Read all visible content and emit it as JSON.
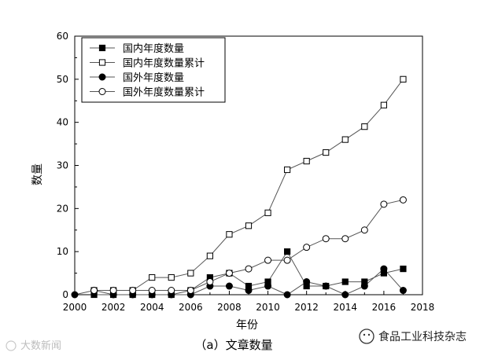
{
  "chart_data": {
    "type": "line",
    "xlabel": "年份",
    "ylabel": "数量",
    "caption": "（a）文章数量",
    "xlim": [
      2000,
      2018
    ],
    "ylim": [
      0,
      60
    ],
    "xticks": [
      2000,
      2002,
      2004,
      2006,
      2008,
      2010,
      2012,
      2014,
      2016,
      2018
    ],
    "yticks": [
      0,
      10,
      20,
      30,
      40,
      50,
      60
    ],
    "legend_position": "top-left",
    "series": [
      {
        "name": "国内年度数量",
        "marker": "filled-square",
        "x": [
          2001,
          2002,
          2003,
          2004,
          2005,
          2006,
          2007,
          2008,
          2009,
          2010,
          2011,
          2012,
          2013,
          2014,
          2015,
          2016,
          2017
        ],
        "y": [
          0,
          0,
          0,
          0,
          0,
          1,
          4,
          5,
          2,
          3,
          10,
          2,
          2,
          3,
          3,
          5,
          6
        ]
      },
      {
        "name": "国内年度数量累计",
        "marker": "open-square",
        "x": [
          2001,
          2002,
          2003,
          2004,
          2005,
          2006,
          2007,
          2008,
          2009,
          2010,
          2011,
          2012,
          2013,
          2014,
          2015,
          2016,
          2017
        ],
        "y": [
          1,
          1,
          1,
          4,
          4,
          5,
          9,
          14,
          16,
          19,
          29,
          31,
          33,
          36,
          39,
          44,
          50
        ]
      },
      {
        "name": "国外年度数量",
        "marker": "filled-circle",
        "x": [
          2000,
          2001,
          2002,
          2003,
          2004,
          2005,
          2006,
          2007,
          2008,
          2009,
          2010,
          2011,
          2012,
          2013,
          2014,
          2015,
          2016,
          2017
        ],
        "y": [
          0,
          1,
          0,
          0,
          0,
          0,
          0,
          2,
          2,
          1,
          2,
          0,
          3,
          2,
          0,
          2,
          6,
          1
        ]
      },
      {
        "name": "国外年度数量累计",
        "marker": "open-circle",
        "x": [
          2001,
          2002,
          2003,
          2004,
          2005,
          2006,
          2007,
          2008,
          2009,
          2010,
          2011,
          2012,
          2013,
          2014,
          2015,
          2016,
          2017
        ],
        "y": [
          1,
          1,
          1,
          1,
          1,
          1,
          3,
          5,
          6,
          8,
          8,
          11,
          13,
          13,
          15,
          21,
          22
        ]
      }
    ]
  },
  "watermark_left": "大数新闻",
  "watermark_right": "食品工业科技杂志"
}
